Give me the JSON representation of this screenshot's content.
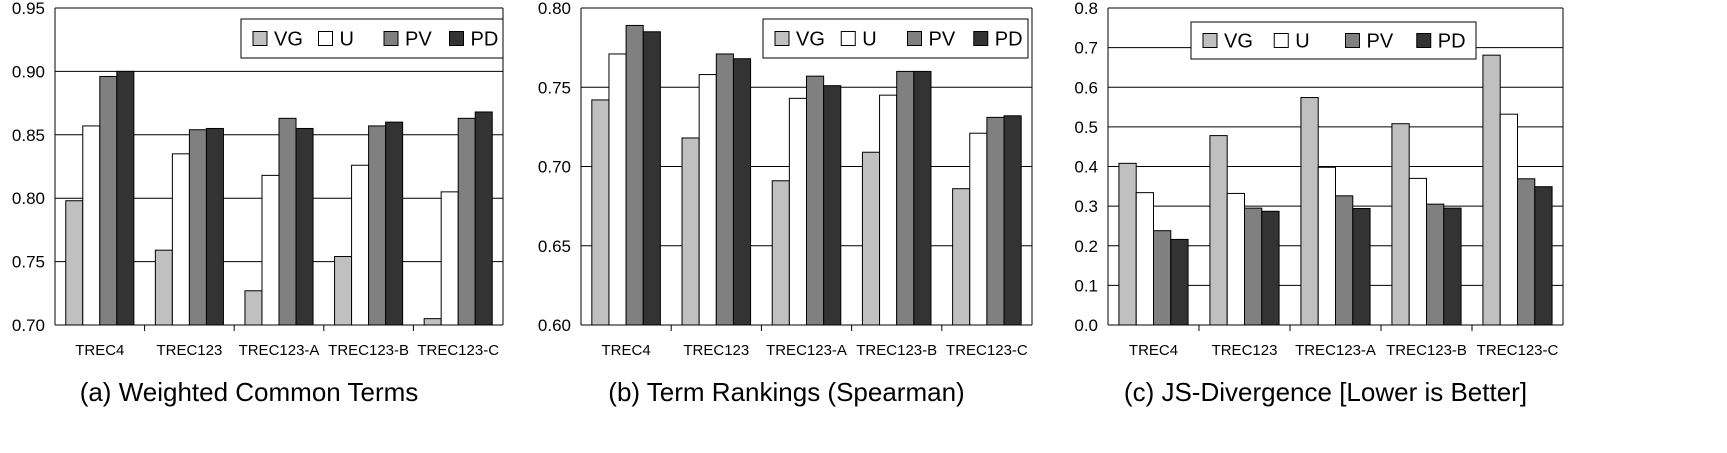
{
  "chart_data": [
    {
      "type": "bar",
      "caption": "(a) Weighted Common Terms",
      "categories": [
        "TREC4",
        "TREC123",
        "TREC123-A",
        "TREC123-B",
        "TREC123-C"
      ],
      "ylim": [
        0.7,
        0.95
      ],
      "yticks": [
        "0.70",
        "0.75",
        "0.80",
        "0.85",
        "0.90",
        "0.95"
      ],
      "grid": true,
      "legend_position": "top-right",
      "series": [
        {
          "name": "VG",
          "values": [
            0.798,
            0.759,
            0.727,
            0.754,
            0.705
          ]
        },
        {
          "name": "U",
          "values": [
            0.857,
            0.835,
            0.818,
            0.826,
            0.805
          ]
        },
        {
          "name": "PV",
          "values": [
            0.896,
            0.854,
            0.863,
            0.857,
            0.863
          ]
        },
        {
          "name": "PD",
          "values": [
            0.9,
            0.855,
            0.855,
            0.86,
            0.868
          ]
        }
      ]
    },
    {
      "type": "bar",
      "caption": "(b) Term Rankings (Spearman)",
      "categories": [
        "TREC4",
        "TREC123",
        "TREC123-A",
        "TREC123-B",
        "TREC123-C"
      ],
      "ylim": [
        0.6,
        0.8
      ],
      "yticks": [
        "0.60",
        "0.65",
        "0.70",
        "0.75",
        "0.80"
      ],
      "grid": true,
      "legend_position": "top-right",
      "series": [
        {
          "name": "VG",
          "values": [
            0.742,
            0.718,
            0.691,
            0.709,
            0.686
          ]
        },
        {
          "name": "U",
          "values": [
            0.771,
            0.758,
            0.743,
            0.745,
            0.721
          ]
        },
        {
          "name": "PV",
          "values": [
            0.789,
            0.771,
            0.757,
            0.76,
            0.731
          ]
        },
        {
          "name": "PD",
          "values": [
            0.785,
            0.768,
            0.751,
            0.76,
            0.732
          ]
        }
      ]
    },
    {
      "type": "bar",
      "caption": "(c) JS-Divergence [Lower is Better]",
      "categories": [
        "TREC4",
        "TREC123",
        "TREC123-A",
        "TREC123-B",
        "TREC123-C"
      ],
      "ylim": [
        0.0,
        0.8
      ],
      "yticks": [
        "0.0",
        "0.1",
        "0.2",
        "0.3",
        "0.4",
        "0.5",
        "0.6",
        "0.7",
        "0.8"
      ],
      "grid": true,
      "legend_position": "top-center",
      "series": [
        {
          "name": "VG",
          "values": [
            0.408,
            0.478,
            0.574,
            0.508,
            0.681
          ]
        },
        {
          "name": "U",
          "values": [
            0.334,
            0.332,
            0.398,
            0.37,
            0.532
          ]
        },
        {
          "name": "PV",
          "values": [
            0.238,
            0.295,
            0.326,
            0.305,
            0.369
          ]
        },
        {
          "name": "PD",
          "values": [
            0.216,
            0.287,
            0.294,
            0.295,
            0.349
          ]
        }
      ]
    }
  ],
  "colors": {
    "VG": "#c0c0c0",
    "U": "#ffffff",
    "PV": "#808080",
    "PD": "#333333",
    "gridline": "#000000",
    "bar_stroke": "#000000"
  }
}
